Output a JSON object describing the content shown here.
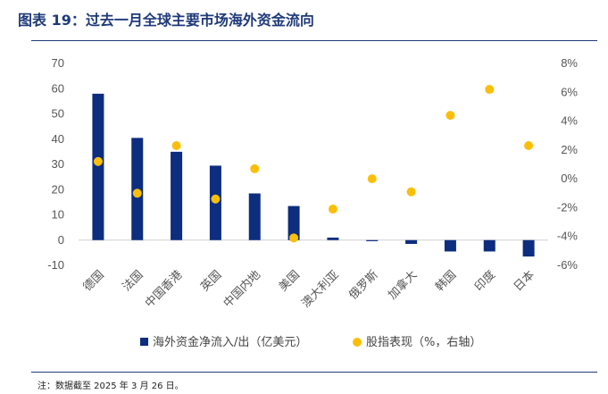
{
  "title": "图表 19：过去一月全球主要市场海外资金流向",
  "note": "注：数据截至 2025 年 3 月 26 日。",
  "chart_data": {
    "type": "bar",
    "categories": [
      "德国",
      "法国",
      "中国香港",
      "英国",
      "中国内地",
      "美国",
      "澳大利亚",
      "俄罗斯",
      "加拿大",
      "韩国",
      "印度",
      "日本"
    ],
    "series": [
      {
        "name": "海外资金净流入/出（亿美元）",
        "type": "bar",
        "axis": "left",
        "color": "#0d2d7e",
        "values": [
          58.0,
          40.5,
          35.0,
          29.5,
          18.5,
          13.5,
          1.0,
          -0.2,
          -1.5,
          -4.5,
          -4.5,
          -6.5
        ]
      },
      {
        "name": "股指表现（%，右轴）",
        "type": "scatter",
        "axis": "right",
        "color": "#fbbf0a",
        "values": [
          1.2,
          -1.0,
          2.3,
          -1.4,
          0.7,
          -4.1,
          -2.1,
          0.0,
          -0.9,
          4.4,
          6.2,
          2.3
        ]
      }
    ],
    "y_left": {
      "min": -10,
      "max": 70,
      "ticks": [
        70,
        60,
        50,
        40,
        30,
        20,
        10,
        0,
        -10
      ]
    },
    "y_right": {
      "min": -6,
      "max": 8,
      "ticks": [
        "8%",
        "6%",
        "4%",
        "2%",
        "0%",
        "-2%",
        "-4%",
        "-6%"
      ]
    },
    "legend_position": "bottom",
    "grid": false
  }
}
